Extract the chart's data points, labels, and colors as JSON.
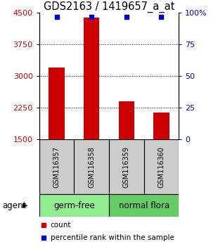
{
  "title": "GDS2163 / 1419657_a_at",
  "samples": [
    "GSM116357",
    "GSM116358",
    "GSM116359",
    "GSM116360"
  ],
  "counts": [
    3200,
    4380,
    2400,
    2130
  ],
  "percentile_ranks": [
    99,
    99,
    99,
    99
  ],
  "y_min": 1500,
  "y_max": 4500,
  "y_ticks": [
    1500,
    2250,
    3000,
    3750,
    4500
  ],
  "y_right_ticks": [
    0,
    25,
    50,
    75,
    100
  ],
  "bar_color": "#cc0000",
  "percentile_color": "#0000cc",
  "bar_width": 0.45,
  "groups": [
    {
      "label": "germ-free",
      "samples": [
        0,
        1
      ],
      "color": "#90ee90"
    },
    {
      "label": "normal flora",
      "samples": [
        2,
        3
      ],
      "color": "#66cc66"
    }
  ],
  "group_label": "agent",
  "legend_count_color": "#cc0000",
  "legend_percentile_color": "#0000cc",
  "sample_box_color": "#cccccc",
  "title_fontsize": 10.5,
  "tick_fontsize": 8,
  "sample_fontsize": 7,
  "group_fontsize": 8.5,
  "legend_fontsize": 7.5
}
